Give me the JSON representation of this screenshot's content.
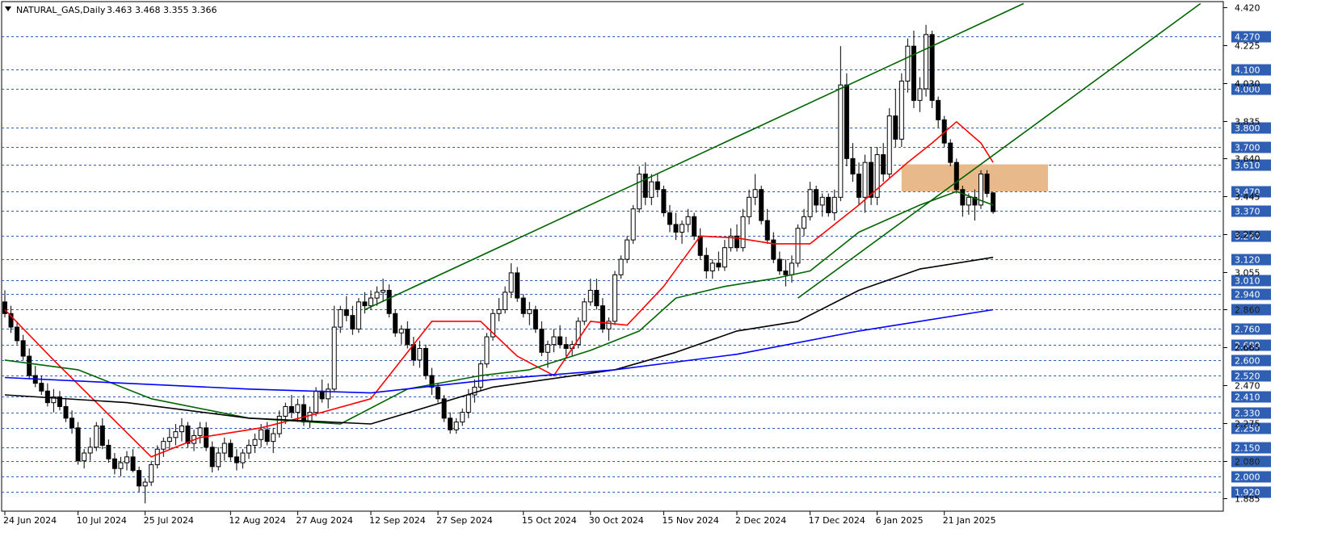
{
  "chart_data": {
    "type": "candlestick",
    "symbol": "NATURAL_GAS",
    "timeframe": "Daily",
    "title": "NATURAL_GAS,Daily",
    "ohlc_text": "3.463 3.468 3.355 3.366",
    "ylim": [
      1.82,
      4.45
    ],
    "grid": true,
    "y_ticks_minor": [
      "4.420",
      "4.225",
      "4.030",
      "3.835",
      "3.640",
      "3.445",
      "3.250",
      "3.055",
      "2.860",
      "2.665",
      "2.470",
      "2.275",
      "2.080",
      "1.885"
    ],
    "y_levels": [
      "4.270",
      "4.100",
      "4.000",
      "3.800",
      "3.700",
      "3.610",
      "3.470",
      "3.370",
      "3.240",
      "3.120",
      "3.010",
      "2.940",
      "2.860",
      "2.760",
      "2.680",
      "2.600",
      "2.520",
      "2.410",
      "2.330",
      "2.250",
      "2.150",
      "2.080",
      "2.000",
      "1.920"
    ],
    "x_labels": [
      "24 Jun 2024",
      "10 Jul 2024",
      "25 Jul 2024",
      "12 Aug 2024",
      "27 Aug 2024",
      "12 Sep 2024",
      "27 Sep 2024",
      "15 Oct 2024",
      "30 Oct 2024",
      "15 Nov 2024",
      "2 Dec 2024",
      "17 Dec 2024",
      "6 Jan 2025",
      "21 Jan 2025"
    ],
    "x_label_index": [
      0,
      12,
      23,
      37,
      48,
      60,
      71,
      85,
      96,
      108,
      120,
      132,
      143,
      154
    ],
    "candles": [
      [
        2.9,
        2.96,
        2.82,
        2.84
      ],
      [
        2.84,
        2.88,
        2.74,
        2.77
      ],
      [
        2.77,
        2.8,
        2.68,
        2.7
      ],
      [
        2.7,
        2.73,
        2.6,
        2.62
      ],
      [
        2.62,
        2.66,
        2.5,
        2.52
      ],
      [
        2.52,
        2.57,
        2.46,
        2.48
      ],
      [
        2.48,
        2.52,
        2.42,
        2.44
      ],
      [
        2.44,
        2.48,
        2.36,
        2.38
      ],
      [
        2.38,
        2.45,
        2.33,
        2.41
      ],
      [
        2.41,
        2.44,
        2.34,
        2.36
      ],
      [
        2.36,
        2.4,
        2.28,
        2.3
      ],
      [
        2.3,
        2.34,
        2.22,
        2.25
      ],
      [
        2.25,
        2.28,
        2.06,
        2.08
      ],
      [
        2.08,
        2.14,
        2.04,
        2.12
      ],
      [
        2.12,
        2.2,
        2.08,
        2.15
      ],
      [
        2.15,
        2.28,
        2.13,
        2.26
      ],
      [
        2.26,
        2.3,
        2.14,
        2.16
      ],
      [
        2.16,
        2.19,
        2.07,
        2.09
      ],
      [
        2.09,
        2.12,
        2.01,
        2.04
      ],
      [
        2.04,
        2.1,
        2.0,
        2.07
      ],
      [
        2.07,
        2.13,
        2.03,
        2.1
      ],
      [
        2.1,
        2.14,
        2.02,
        2.03
      ],
      [
        2.03,
        2.05,
        1.92,
        1.95
      ],
      [
        1.95,
        1.99,
        1.86,
        1.97
      ],
      [
        1.97,
        2.08,
        1.95,
        2.06
      ],
      [
        2.06,
        2.16,
        2.04,
        2.14
      ],
      [
        2.14,
        2.2,
        2.1,
        2.18
      ],
      [
        2.18,
        2.25,
        2.14,
        2.2
      ],
      [
        2.2,
        2.27,
        2.16,
        2.23
      ],
      [
        2.23,
        2.3,
        2.18,
        2.26
      ],
      [
        2.26,
        2.28,
        2.15,
        2.17
      ],
      [
        2.17,
        2.24,
        2.13,
        2.21
      ],
      [
        2.21,
        2.28,
        2.17,
        2.25
      ],
      [
        2.25,
        2.28,
        2.13,
        2.15
      ],
      [
        2.15,
        2.18,
        2.02,
        2.05
      ],
      [
        2.05,
        2.15,
        2.03,
        2.12
      ],
      [
        2.12,
        2.2,
        2.08,
        2.17
      ],
      [
        2.17,
        2.19,
        2.08,
        2.1
      ],
      [
        2.1,
        2.14,
        2.03,
        2.07
      ],
      [
        2.07,
        2.14,
        2.04,
        2.12
      ],
      [
        2.12,
        2.19,
        2.09,
        2.16
      ],
      [
        2.16,
        2.22,
        2.12,
        2.19
      ],
      [
        2.19,
        2.27,
        2.15,
        2.24
      ],
      [
        2.24,
        2.28,
        2.16,
        2.18
      ],
      [
        2.18,
        2.25,
        2.12,
        2.22
      ],
      [
        2.22,
        2.34,
        2.2,
        2.31
      ],
      [
        2.31,
        2.38,
        2.27,
        2.36
      ],
      [
        2.36,
        2.42,
        2.3,
        2.33
      ],
      [
        2.33,
        2.4,
        2.28,
        2.37
      ],
      [
        2.37,
        2.42,
        2.26,
        2.28
      ],
      [
        2.28,
        2.36,
        2.25,
        2.33
      ],
      [
        2.33,
        2.46,
        2.31,
        2.44
      ],
      [
        2.44,
        2.5,
        2.38,
        2.4
      ],
      [
        2.4,
        2.48,
        2.35,
        2.45
      ],
      [
        2.45,
        2.88,
        2.44,
        2.77
      ],
      [
        2.77,
        2.88,
        2.74,
        2.86
      ],
      [
        2.86,
        2.93,
        2.8,
        2.83
      ],
      [
        2.83,
        2.88,
        2.73,
        2.76
      ],
      [
        2.76,
        2.92,
        2.74,
        2.9
      ],
      [
        2.9,
        2.95,
        2.84,
        2.88
      ],
      [
        2.88,
        2.96,
        2.86,
        2.92
      ],
      [
        2.92,
        2.98,
        2.88,
        2.95
      ],
      [
        2.95,
        3.02,
        2.9,
        2.96
      ],
      [
        2.96,
        2.99,
        2.82,
        2.84
      ],
      [
        2.84,
        2.86,
        2.72,
        2.74
      ],
      [
        2.74,
        2.78,
        2.68,
        2.76
      ],
      [
        2.76,
        2.8,
        2.66,
        2.68
      ],
      [
        2.68,
        2.72,
        2.57,
        2.6
      ],
      [
        2.6,
        2.7,
        2.56,
        2.66
      ],
      [
        2.66,
        2.68,
        2.5,
        2.52
      ],
      [
        2.52,
        2.56,
        2.42,
        2.46
      ],
      [
        2.46,
        2.48,
        2.38,
        2.4
      ],
      [
        2.4,
        2.42,
        2.28,
        2.3
      ],
      [
        2.3,
        2.33,
        2.22,
        2.24
      ],
      [
        2.24,
        2.3,
        2.22,
        2.28
      ],
      [
        2.28,
        2.35,
        2.26,
        2.33
      ],
      [
        2.33,
        2.45,
        2.3,
        2.42
      ],
      [
        2.42,
        2.5,
        2.38,
        2.46
      ],
      [
        2.46,
        2.6,
        2.44,
        2.58
      ],
      [
        2.58,
        2.74,
        2.56,
        2.72
      ],
      [
        2.72,
        2.86,
        2.7,
        2.84
      ],
      [
        2.84,
        2.92,
        2.8,
        2.86
      ],
      [
        2.86,
        2.98,
        2.84,
        2.95
      ],
      [
        2.95,
        3.1,
        2.92,
        3.05
      ],
      [
        3.05,
        3.08,
        2.9,
        2.92
      ],
      [
        2.92,
        2.94,
        2.82,
        2.84
      ],
      [
        2.84,
        2.9,
        2.78,
        2.86
      ],
      [
        2.86,
        2.88,
        2.74,
        2.76
      ],
      [
        2.76,
        2.8,
        2.62,
        2.64
      ],
      [
        2.64,
        2.7,
        2.56,
        2.68
      ],
      [
        2.68,
        2.76,
        2.64,
        2.72
      ],
      [
        2.72,
        2.78,
        2.66,
        2.68
      ],
      [
        2.68,
        2.72,
        2.62,
        2.66
      ],
      [
        2.66,
        2.7,
        2.62,
        2.68
      ],
      [
        2.68,
        2.82,
        2.66,
        2.8
      ],
      [
        2.8,
        2.92,
        2.78,
        2.9
      ],
      [
        2.9,
        3.02,
        2.88,
        2.96
      ],
      [
        2.96,
        3.02,
        2.86,
        2.88
      ],
      [
        2.88,
        2.92,
        2.74,
        2.76
      ],
      [
        2.76,
        2.82,
        2.7,
        2.8
      ],
      [
        2.8,
        3.06,
        2.78,
        3.04
      ],
      [
        3.04,
        3.14,
        3.02,
        3.12
      ],
      [
        3.12,
        3.24,
        3.1,
        3.22
      ],
      [
        3.22,
        3.4,
        3.2,
        3.38
      ],
      [
        3.38,
        3.6,
        3.36,
        3.56
      ],
      [
        3.56,
        3.62,
        3.4,
        3.44
      ],
      [
        3.44,
        3.56,
        3.4,
        3.52
      ],
      [
        3.52,
        3.56,
        3.44,
        3.48
      ],
      [
        3.48,
        3.5,
        3.34,
        3.36
      ],
      [
        3.36,
        3.4,
        3.26,
        3.3
      ],
      [
        3.3,
        3.36,
        3.22,
        3.26
      ],
      [
        3.26,
        3.32,
        3.2,
        3.3
      ],
      [
        3.3,
        3.38,
        3.26,
        3.34
      ],
      [
        3.34,
        3.36,
        3.22,
        3.24
      ],
      [
        3.24,
        3.28,
        3.12,
        3.14
      ],
      [
        3.14,
        3.18,
        3.02,
        3.06
      ],
      [
        3.06,
        3.12,
        3.02,
        3.1
      ],
      [
        3.1,
        3.16,
        3.06,
        3.08
      ],
      [
        3.08,
        3.22,
        3.06,
        3.18
      ],
      [
        3.18,
        3.28,
        3.16,
        3.24
      ],
      [
        3.24,
        3.3,
        3.16,
        3.18
      ],
      [
        3.18,
        3.38,
        3.16,
        3.34
      ],
      [
        3.34,
        3.48,
        3.3,
        3.44
      ],
      [
        3.44,
        3.56,
        3.4,
        3.48
      ],
      [
        3.48,
        3.5,
        3.3,
        3.32
      ],
      [
        3.32,
        3.38,
        3.2,
        3.22
      ],
      [
        3.22,
        3.26,
        3.1,
        3.12
      ],
      [
        3.12,
        3.16,
        3.04,
        3.06
      ],
      [
        3.06,
        3.12,
        2.98,
        3.04
      ],
      [
        3.04,
        3.14,
        3.0,
        3.1
      ],
      [
        3.1,
        3.3,
        3.08,
        3.28
      ],
      [
        3.28,
        3.38,
        3.24,
        3.34
      ],
      [
        3.34,
        3.52,
        3.32,
        3.48
      ],
      [
        3.48,
        3.5,
        3.36,
        3.4
      ],
      [
        3.4,
        3.46,
        3.34,
        3.44
      ],
      [
        3.44,
        3.46,
        3.34,
        3.36
      ],
      [
        3.36,
        3.48,
        3.32,
        3.44
      ],
      [
        3.44,
        4.22,
        3.42,
        4.02
      ],
      [
        4.02,
        4.08,
        3.6,
        3.64
      ],
      [
        3.64,
        3.72,
        3.52,
        3.56
      ],
      [
        3.56,
        3.62,
        3.4,
        3.44
      ],
      [
        3.44,
        3.66,
        3.36,
        3.62
      ],
      [
        3.62,
        3.7,
        3.4,
        3.44
      ],
      [
        3.44,
        3.7,
        3.4,
        3.66
      ],
      [
        3.66,
        3.72,
        3.52,
        3.56
      ],
      [
        3.56,
        3.9,
        3.54,
        3.86
      ],
      [
        3.86,
        4.0,
        3.7,
        3.74
      ],
      [
        3.74,
        4.08,
        3.7,
        4.04
      ],
      [
        4.04,
        4.26,
        3.98,
        4.22
      ],
      [
        4.22,
        4.3,
        3.9,
        3.94
      ],
      [
        3.94,
        4.06,
        3.88,
        4.0
      ],
      [
        4.0,
        4.33,
        3.96,
        4.28
      ],
      [
        4.28,
        4.3,
        3.9,
        3.94
      ],
      [
        3.94,
        3.96,
        3.8,
        3.84
      ],
      [
        3.84,
        3.86,
        3.7,
        3.72
      ],
      [
        3.72,
        3.74,
        3.6,
        3.62
      ],
      [
        3.62,
        3.64,
        3.46,
        3.48
      ],
      [
        3.48,
        3.5,
        3.34,
        3.4
      ],
      [
        3.4,
        3.46,
        3.35,
        3.44
      ],
      [
        3.44,
        3.48,
        3.32,
        3.4
      ],
      [
        3.4,
        3.58,
        3.38,
        3.56
      ],
      [
        3.56,
        3.58,
        3.44,
        3.46
      ],
      [
        3.463,
        3.468,
        3.355,
        3.366
      ]
    ],
    "ma_series": [
      {
        "color": "#ff0000",
        "period": 9
      },
      {
        "color": "#006400",
        "period": 21
      },
      {
        "color": "#000000",
        "period": 50
      },
      {
        "color": "#0000ff",
        "period": 100
      }
    ],
    "ma_anchor": {
      "#0000ff": [
        [
          0,
          2.51
        ],
        [
          20,
          2.48
        ],
        [
          40,
          2.45
        ],
        [
          60,
          2.43
        ],
        [
          80,
          2.5
        ],
        [
          100,
          2.55
        ],
        [
          120,
          2.63
        ],
        [
          140,
          2.75
        ],
        [
          162,
          2.86
        ]
      ],
      "#000000": [
        [
          0,
          2.42
        ],
        [
          20,
          2.38
        ],
        [
          40,
          2.3
        ],
        [
          60,
          2.27
        ],
        [
          80,
          2.46
        ],
        [
          100,
          2.55
        ],
        [
          110,
          2.64
        ],
        [
          120,
          2.75
        ],
        [
          130,
          2.8
        ],
        [
          140,
          2.96
        ],
        [
          150,
          3.07
        ],
        [
          162,
          3.13
        ]
      ],
      "#006400": [
        [
          0,
          2.6
        ],
        [
          12,
          2.55
        ],
        [
          24,
          2.4
        ],
        [
          40,
          2.3
        ],
        [
          55,
          2.27
        ],
        [
          66,
          2.45
        ],
        [
          78,
          2.52
        ],
        [
          86,
          2.55
        ],
        [
          96,
          2.65
        ],
        [
          104,
          2.75
        ],
        [
          110,
          2.92
        ],
        [
          118,
          2.98
        ],
        [
          126,
          3.02
        ],
        [
          132,
          3.06
        ],
        [
          140,
          3.26
        ],
        [
          150,
          3.4
        ],
        [
          156,
          3.47
        ],
        [
          162,
          3.4
        ]
      ],
      "#ff0000": [
        [
          0,
          2.86
        ],
        [
          8,
          2.6
        ],
        [
          16,
          2.35
        ],
        [
          24,
          2.1
        ],
        [
          32,
          2.2
        ],
        [
          42,
          2.25
        ],
        [
          52,
          2.33
        ],
        [
          60,
          2.4
        ],
        [
          70,
          2.8
        ],
        [
          78,
          2.8
        ],
        [
          84,
          2.62
        ],
        [
          90,
          2.52
        ],
        [
          96,
          2.8
        ],
        [
          102,
          2.78
        ],
        [
          108,
          2.98
        ],
        [
          114,
          3.24
        ],
        [
          120,
          3.23
        ],
        [
          126,
          3.2
        ],
        [
          132,
          3.2
        ],
        [
          140,
          3.4
        ],
        [
          148,
          3.62
        ],
        [
          152,
          3.72
        ],
        [
          156,
          3.83
        ],
        [
          160,
          3.72
        ],
        [
          162,
          3.62
        ]
      ]
    },
    "trendlines": [
      {
        "color": "#006400",
        "from": [
          59,
          2.86
        ],
        "to": [
          167,
          4.44
        ]
      },
      {
        "color": "#006400",
        "from": [
          130,
          2.92
        ],
        "to": [
          196,
          4.44
        ]
      }
    ],
    "zone": {
      "y_low": 3.47,
      "y_high": 3.61,
      "from_index": 147,
      "to_index": 171,
      "color": "#e8b98a"
    }
  }
}
